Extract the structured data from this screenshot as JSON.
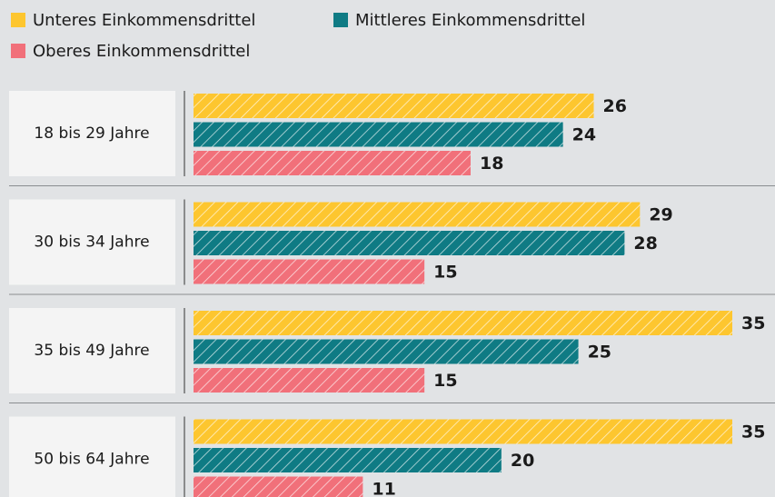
{
  "chart_data": {
    "type": "bar",
    "orientation": "horizontal",
    "categories": [
      "18 bis 29 Jahre",
      "30 bis 34 Jahre",
      "35 bis 49 Jahre",
      "50 bis 64 Jahre"
    ],
    "series": [
      {
        "name": "Unteres Einkommensdrittel",
        "color": "#fdc62f",
        "values": [
          26,
          29,
          35,
          35
        ]
      },
      {
        "name": "Mittleres Einkommensdrittel",
        "color": "#0f7b84",
        "values": [
          24,
          28,
          25,
          20
        ]
      },
      {
        "name": "Oberes Einkommensdrittel",
        "color": "#f1707a",
        "values": [
          18,
          15,
          15,
          11
        ]
      }
    ]
  }
}
